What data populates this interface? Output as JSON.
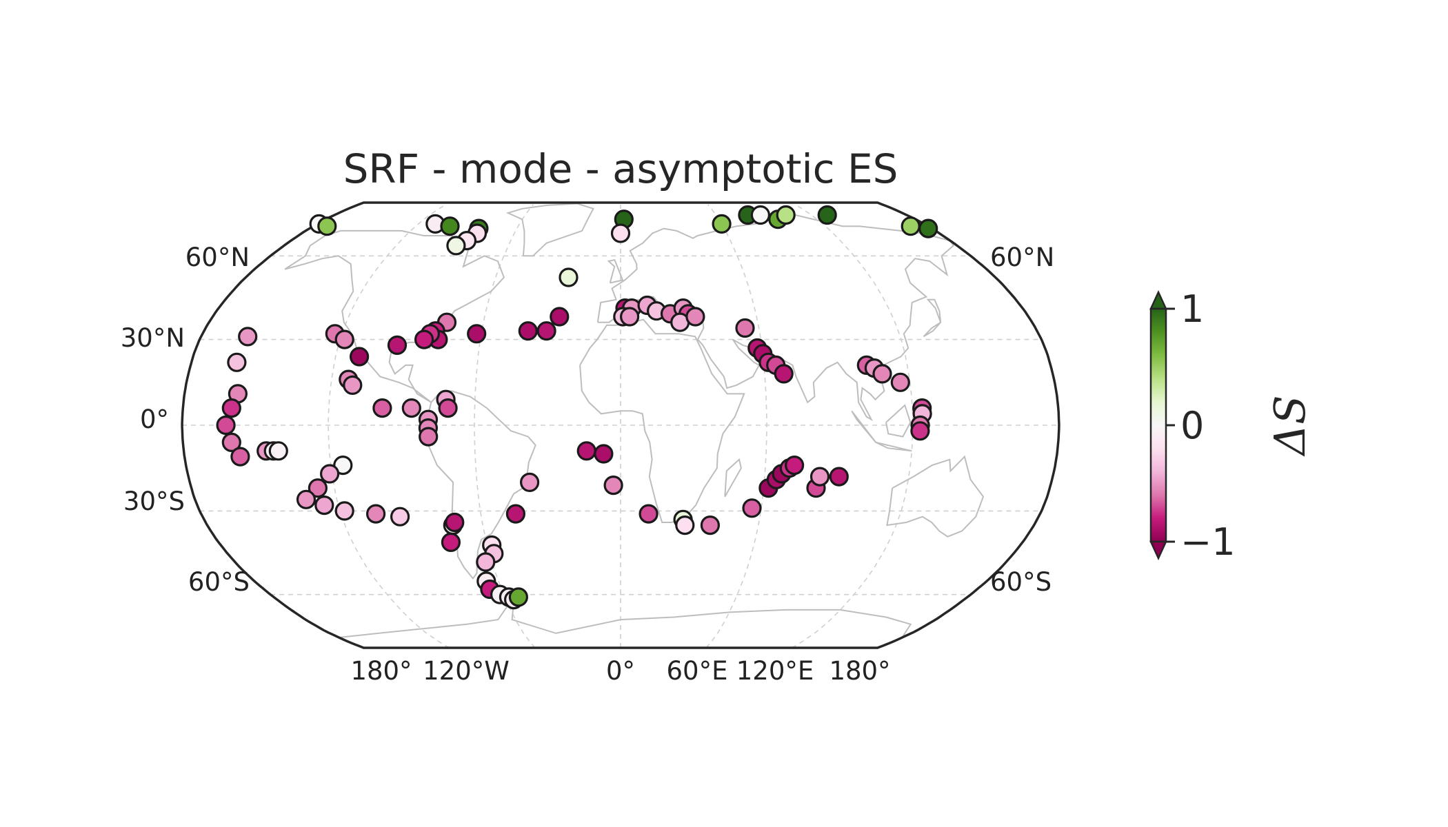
{
  "map": {
    "title": "SRF - mode - asymptotic ES",
    "projection": "Robinson",
    "lat_labels_left": [
      "60°N",
      "30°N",
      "0°",
      "30°S",
      "60°S"
    ],
    "lat_labels_right": [
      "60°N",
      "60°S"
    ],
    "lon_labels": [
      "180°",
      "120°W",
      "0°",
      "60°E",
      "120°E",
      "180°"
    ]
  },
  "colorbar": {
    "label": "ΔS",
    "ticks": [
      "1",
      "0",
      "−1"
    ],
    "min": -1,
    "max": 1,
    "colors": [
      "#8e0152",
      "#c51b7d",
      "#de77ae",
      "#f1b6da",
      "#fde0ef",
      "#f7f7f7",
      "#e6f5d0",
      "#b8e186",
      "#7fbc41",
      "#4d9221",
      "#276419"
    ]
  },
  "chart_data": {
    "type": "scatter",
    "title": "SRF - mode - asymptotic ES",
    "value_label": "ΔS",
    "value_range": [
      -1,
      1
    ],
    "points": [
      {
        "lon": -179,
        "lat": 73,
        "value": 0.0
      },
      {
        "lon": -172,
        "lat": 72,
        "value": 0.55
      },
      {
        "lon": -110,
        "lat": 73,
        "value": -0.1
      },
      {
        "lon": -100,
        "lat": 72,
        "value": 0.85
      },
      {
        "lon": -82,
        "lat": 71,
        "value": 0.9
      },
      {
        "lon": -81,
        "lat": 69,
        "value": -0.2
      },
      {
        "lon": -84,
        "lat": 66,
        "value": -0.15
      },
      {
        "lon": -88,
        "lat": 64,
        "value": 0.1
      },
      {
        "lon": 2,
        "lat": 75,
        "value": 1.0
      },
      {
        "lon": 0,
        "lat": 69,
        "value": -0.2
      },
      {
        "lon": 60,
        "lat": 73,
        "value": 0.55
      },
      {
        "lon": 80,
        "lat": 77,
        "value": 1.0
      },
      {
        "lon": 88,
        "lat": 77,
        "value": 0.0
      },
      {
        "lon": 96,
        "lat": 75,
        "value": 0.7
      },
      {
        "lon": 104,
        "lat": 77,
        "value": 0.4
      },
      {
        "lon": 130,
        "lat": 77,
        "value": 1.0
      },
      {
        "lon": 170,
        "lat": 72,
        "value": 0.5
      },
      {
        "lon": 178,
        "lat": 71,
        "value": 0.95
      },
      {
        "lon": -25,
        "lat": 52,
        "value": 0.15
      },
      {
        "lon": -27,
        "lat": 38,
        "value": -0.9
      },
      {
        "lon": -32,
        "lat": 33,
        "value": -0.85
      },
      {
        "lon": -40,
        "lat": 33,
        "value": -0.9
      },
      {
        "lon": -62,
        "lat": 32,
        "value": -0.9
      },
      {
        "lon": -76,
        "lat": 36,
        "value": -0.6
      },
      {
        "lon": -80,
        "lat": 33,
        "value": -0.8
      },
      {
        "lon": -78,
        "lat": 30,
        "value": -0.85
      },
      {
        "lon": -82,
        "lat": 32,
        "value": -0.75
      },
      {
        "lon": -84,
        "lat": 30,
        "value": -0.8
      },
      {
        "lon": -95,
        "lat": 28,
        "value": -0.85
      },
      {
        "lon": -110,
        "lat": 24,
        "value": -0.95
      },
      {
        "lon": -123,
        "lat": 32,
        "value": -0.6
      },
      {
        "lon": -118,
        "lat": 30,
        "value": -0.55
      },
      {
        "lon": -113,
        "lat": 16,
        "value": -0.55
      },
      {
        "lon": -111,
        "lat": 14,
        "value": -0.5
      },
      {
        "lon": -98,
        "lat": 6,
        "value": -0.65
      },
      {
        "lon": -86,
        "lat": 6,
        "value": -0.55
      },
      {
        "lon": -72,
        "lat": 9,
        "value": -0.45
      },
      {
        "lon": -71,
        "lat": 6,
        "value": -0.7
      },
      {
        "lon": -79,
        "lat": 2,
        "value": -0.5
      },
      {
        "lon": -79,
        "lat": -1,
        "value": -0.55
      },
      {
        "lon": -79,
        "lat": -4,
        "value": -0.6
      },
      {
        "lon": -160,
        "lat": 31,
        "value": -0.5
      },
      {
        "lon": -161,
        "lat": 22,
        "value": -0.35
      },
      {
        "lon": -158,
        "lat": 11,
        "value": -0.55
      },
      {
        "lon": -160,
        "lat": 6,
        "value": -0.75
      },
      {
        "lon": -162,
        "lat": 0,
        "value": -0.7
      },
      {
        "lon": -160,
        "lat": -6,
        "value": -0.6
      },
      {
        "lon": -157,
        "lat": -11,
        "value": -0.65
      },
      {
        "lon": -146,
        "lat": -9,
        "value": -0.5
      },
      {
        "lon": -143,
        "lat": -9,
        "value": -0.05
      },
      {
        "lon": -141,
        "lat": -9,
        "value": -0.05
      },
      {
        "lon": -115,
        "lat": -14,
        "value": 0.0
      },
      {
        "lon": -121,
        "lat": -17,
        "value": -0.45
      },
      {
        "lon": -127,
        "lat": -22,
        "value": -0.6
      },
      {
        "lon": -133,
        "lat": -26,
        "value": -0.5
      },
      {
        "lon": -126,
        "lat": -28,
        "value": -0.45
      },
      {
        "lon": -118,
        "lat": -30,
        "value": -0.35
      },
      {
        "lon": -105,
        "lat": -31,
        "value": -0.55
      },
      {
        "lon": -95,
        "lat": -32,
        "value": -0.3
      },
      {
        "lon": -73,
        "lat": -35,
        "value": -0.05
      },
      {
        "lon": -72,
        "lat": -34,
        "value": -0.85
      },
      {
        "lon": -76,
        "lat": -41,
        "value": -0.8
      },
      {
        "lon": -58,
        "lat": -42,
        "value": -0.2
      },
      {
        "lon": -58,
        "lat": -45,
        "value": -0.35
      },
      {
        "lon": -63,
        "lat": -48,
        "value": -0.4
      },
      {
        "lon": -66,
        "lat": -55,
        "value": -0.1
      },
      {
        "lon": -66,
        "lat": -58,
        "value": -0.8
      },
      {
        "lon": -62,
        "lat": -60,
        "value": -0.05
      },
      {
        "lon": -58,
        "lat": -61,
        "value": -0.1
      },
      {
        "lon": -56,
        "lat": -62,
        "value": -0.1
      },
      {
        "lon": -53,
        "lat": -61,
        "value": 0.7
      },
      {
        "lon": -45,
        "lat": -31,
        "value": -0.85
      },
      {
        "lon": -38,
        "lat": -20,
        "value": -0.5
      },
      {
        "lon": -14,
        "lat": -9,
        "value": -0.85
      },
      {
        "lon": -7,
        "lat": -10,
        "value": -0.9
      },
      {
        "lon": -3,
        "lat": -21,
        "value": -0.55
      },
      {
        "lon": 12,
        "lat": -31,
        "value": -0.7
      },
      {
        "lon": 27,
        "lat": -33,
        "value": 0.15
      },
      {
        "lon": 28,
        "lat": -35,
        "value": -0.2
      },
      {
        "lon": 39,
        "lat": -35,
        "value": -0.6
      },
      {
        "lon": 56,
        "lat": -29,
        "value": -0.65
      },
      {
        "lon": 62,
        "lat": -22,
        "value": -0.95
      },
      {
        "lon": 65,
        "lat": -19,
        "value": -0.9
      },
      {
        "lon": 67,
        "lat": -17,
        "value": -0.95
      },
      {
        "lon": 70,
        "lat": -15,
        "value": -0.75
      },
      {
        "lon": 72,
        "lat": -14,
        "value": -0.8
      },
      {
        "lon": 82,
        "lat": -22,
        "value": -0.7
      },
      {
        "lon": 83,
        "lat": -18,
        "value": -0.5
      },
      {
        "lon": 91,
        "lat": -18,
        "value": -0.85
      },
      {
        "lon": 2,
        "lat": 41,
        "value": -0.85
      },
      {
        "lon": 5,
        "lat": 41,
        "value": -0.5
      },
      {
        "lon": 1,
        "lat": 38,
        "value": -0.35
      },
      {
        "lon": 4,
        "lat": 38,
        "value": -0.5
      },
      {
        "lon": 12,
        "lat": 42,
        "value": -0.45
      },
      {
        "lon": 16,
        "lat": 40,
        "value": -0.35
      },
      {
        "lon": 22,
        "lat": 39,
        "value": -0.6
      },
      {
        "lon": 28,
        "lat": 41,
        "value": -0.5
      },
      {
        "lon": 30,
        "lat": 39,
        "value": -0.7
      },
      {
        "lon": 26,
        "lat": 36,
        "value": -0.4
      },
      {
        "lon": 33,
        "lat": 38,
        "value": -0.55
      },
      {
        "lon": 54,
        "lat": 34,
        "value": -0.6
      },
      {
        "lon": 58,
        "lat": 27,
        "value": -0.85
      },
      {
        "lon": 60,
        "lat": 25,
        "value": -0.9
      },
      {
        "lon": 62,
        "lat": 22,
        "value": -0.75
      },
      {
        "lon": 65,
        "lat": 21,
        "value": -0.7
      },
      {
        "lon": 68,
        "lat": 18,
        "value": -0.85
      },
      {
        "lon": 103,
        "lat": 21,
        "value": -0.65
      },
      {
        "lon": 106,
        "lat": 20,
        "value": -0.5
      },
      {
        "lon": 109,
        "lat": 18,
        "value": -0.55
      },
      {
        "lon": 116,
        "lat": 15,
        "value": -0.55
      },
      {
        "lon": 124,
        "lat": 6,
        "value": -0.7
      },
      {
        "lon": 124,
        "lat": 4,
        "value": -0.4
      },
      {
        "lon": 123,
        "lat": 0,
        "value": -0.6
      },
      {
        "lon": 123,
        "lat": -2,
        "value": -0.75
      }
    ]
  }
}
